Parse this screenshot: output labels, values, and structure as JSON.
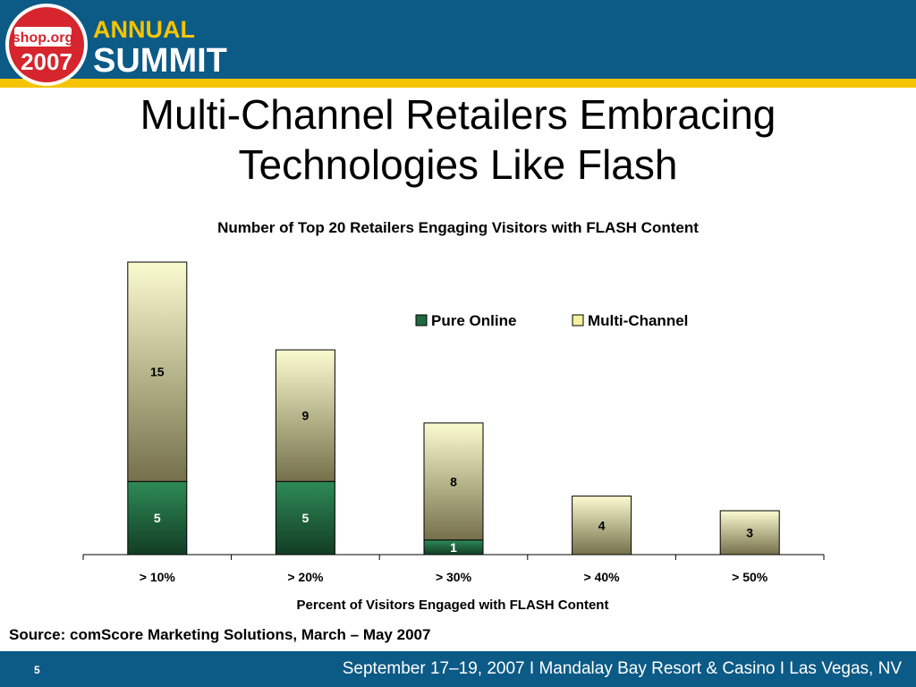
{
  "header": {
    "logo": {
      "badge_text": "shop.org",
      "year": "2007",
      "line1": "ANNUAL",
      "line2": "SUMMIT"
    }
  },
  "slide": {
    "title_line1": "Multi-Channel Retailers Embracing",
    "title_line2": "Technologies Like Flash"
  },
  "chart_data": {
    "type": "bar",
    "stacked": true,
    "title": "Number of Top 20 Retailers Engaging Visitors with FLASH Content",
    "xlabel": "Percent of Visitors Engaged with FLASH Content",
    "ylabel": "",
    "categories": [
      "> 10%",
      "> 20%",
      "> 30%",
      "> 40%",
      "> 50%"
    ],
    "series": [
      {
        "name": "Pure Online",
        "values": [
          5,
          5,
          1,
          0,
          0
        ],
        "labels": [
          "5",
          "5",
          "1",
          "",
          ""
        ],
        "color": "#1f6b3f"
      },
      {
        "name": "Multi-Channel",
        "values": [
          15,
          9,
          8,
          4,
          3
        ],
        "labels": [
          "15",
          "9",
          "8",
          "4",
          "3"
        ],
        "color": "#f3f0a0"
      }
    ],
    "ylim": [
      0,
      20
    ],
    "grid": false,
    "legend": "top-right"
  },
  "source_text": "Source:  comScore Marketing Solutions, March – May 2007",
  "footer": {
    "page_number": "5",
    "event_info": "September 17–19, 2007  I  Mandalay Bay Resort & Casino  I  Las Vegas, NV"
  }
}
